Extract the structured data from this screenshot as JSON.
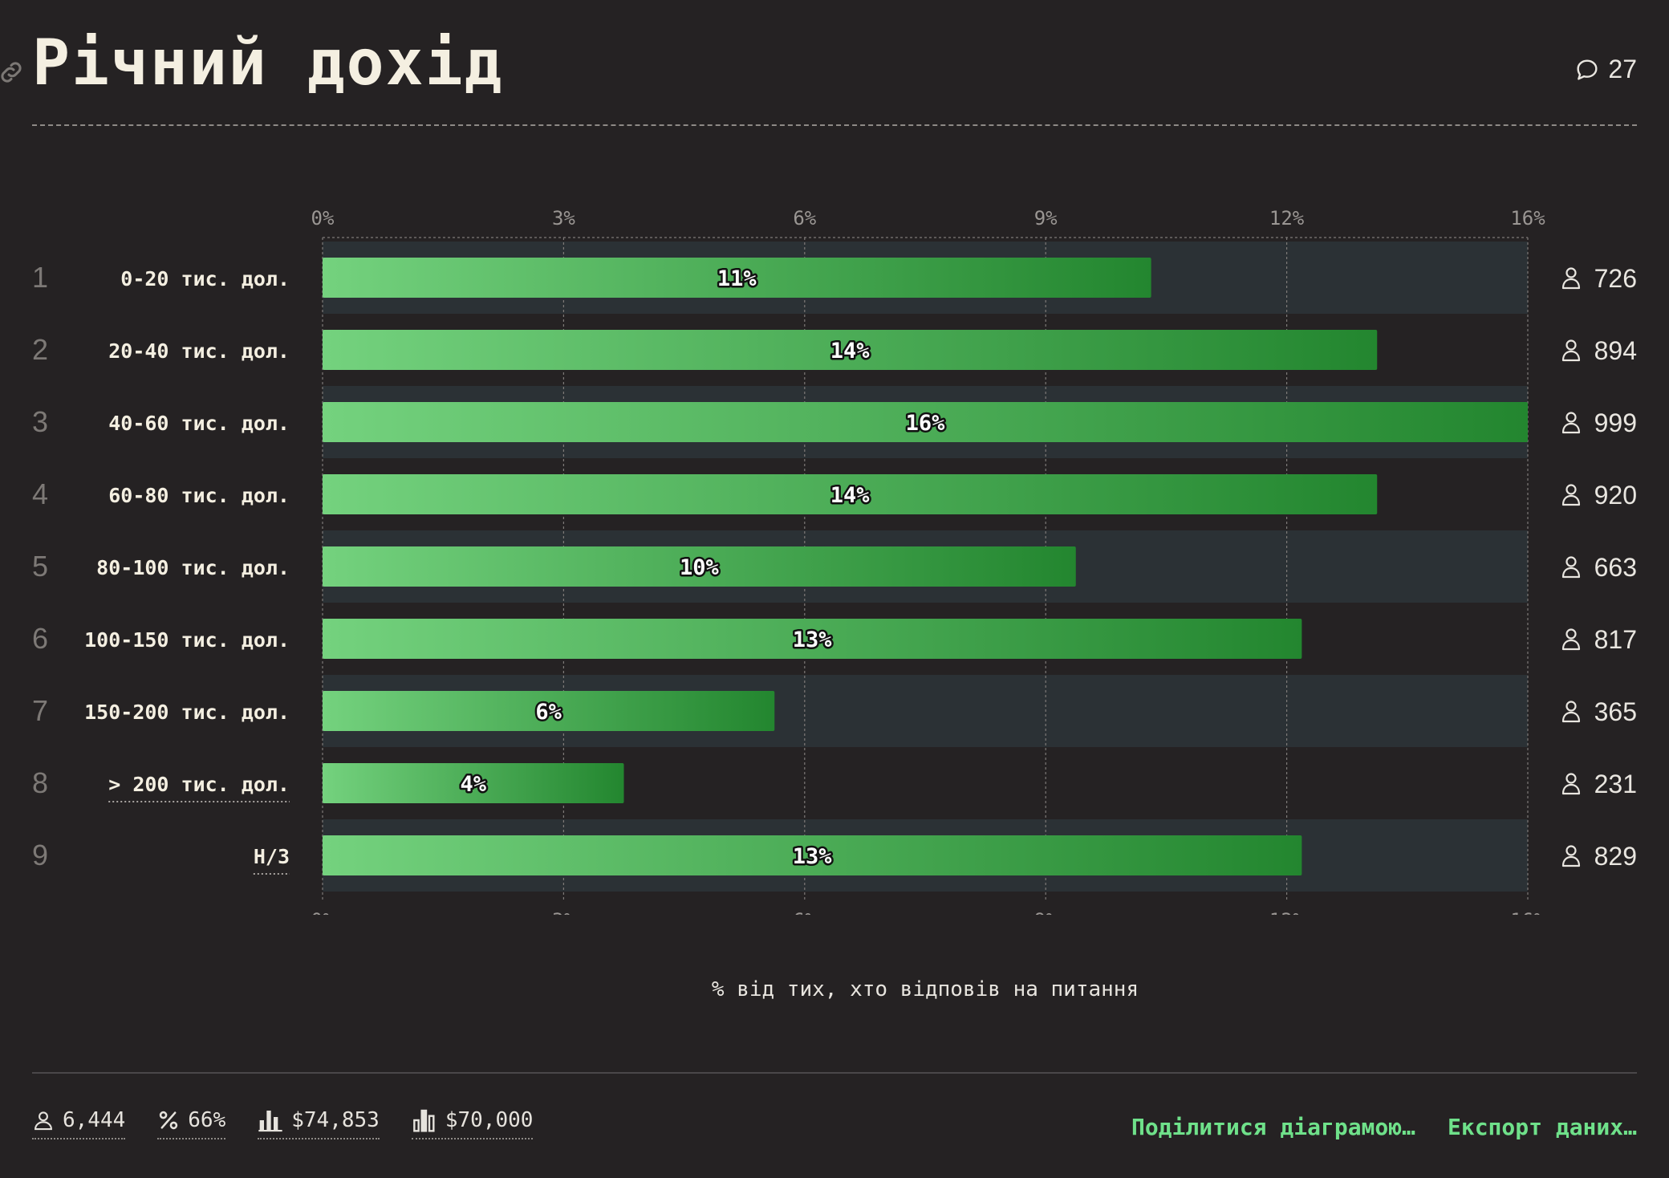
{
  "title": "Річний дохід",
  "comments_count": "27",
  "icons": {
    "link": "link-icon",
    "comment": "speech-bubble-icon",
    "person": "person-icon",
    "percent": "percent-icon",
    "mean": "bar-chart-icon",
    "median": "bar-chart-icon"
  },
  "colors": {
    "background": "#252223",
    "bar_start": "#74d27e",
    "bar_end": "#23862f",
    "row_band": "#2b3135",
    "accent": "#6fe18a"
  },
  "chart_data": {
    "type": "bar",
    "orientation": "horizontal",
    "xlabel": "% від тих, хто відповів на питання",
    "xlim": [
      0,
      16
    ],
    "x_ticks": [
      "0%",
      "3%",
      "6%",
      "9%",
      "12%",
      "16%"
    ],
    "grid": true,
    "rows": [
      {
        "rank": "1",
        "category": "0-20 тис. дол.",
        "value": 11,
        "label": "11%",
        "count": "726"
      },
      {
        "rank": "2",
        "category": "20-40 тис. дол.",
        "value": 14,
        "label": "14%",
        "count": "894"
      },
      {
        "rank": "3",
        "category": "40-60 тис. дол.",
        "value": 16,
        "label": "16%",
        "count": "999"
      },
      {
        "rank": "4",
        "category": "60-80 тис. дол.",
        "value": 14,
        "label": "14%",
        "count": "920"
      },
      {
        "rank": "5",
        "category": "80-100 тис. дол.",
        "value": 10,
        "label": "10%",
        "count": "663"
      },
      {
        "rank": "6",
        "category": "100-150 тис. дол.",
        "value": 13,
        "label": "13%",
        "count": "817"
      },
      {
        "rank": "7",
        "category": "150-200 тис. дол.",
        "value": 6,
        "label": "6%",
        "count": "365"
      },
      {
        "rank": "8",
        "category": "> 200 тис. дол.",
        "value": 4,
        "label": "4%",
        "count": "231"
      },
      {
        "rank": "9",
        "category": "Н/З",
        "value": 13,
        "label": "13%",
        "count": "829"
      }
    ]
  },
  "footer": {
    "respondents": "6,444",
    "percent": "66%",
    "mean": "$74,853",
    "median": "$70,000",
    "share_label": "Поділитися діаграмою…",
    "export_label": "Експорт даних…"
  }
}
